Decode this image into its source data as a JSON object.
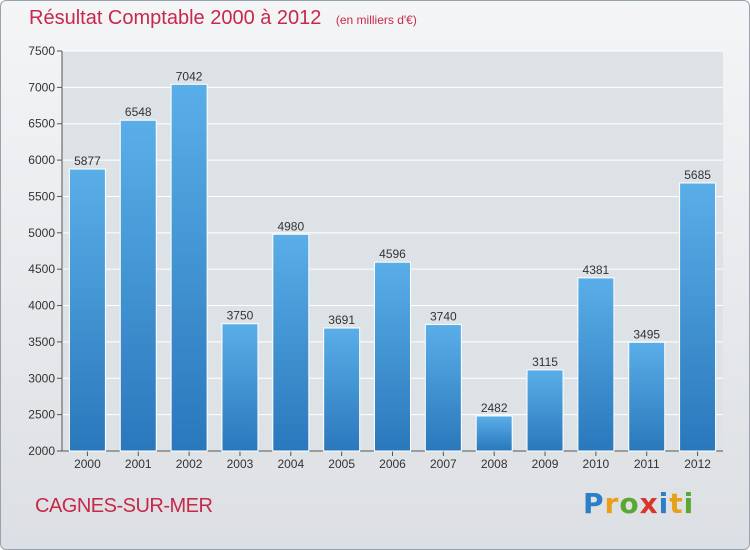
{
  "chart_data": {
    "type": "bar",
    "title": "Résultat Comptable 2000 à 2012",
    "subtitle": "(en milliers d'€)",
    "categories": [
      "2000",
      "2001",
      "2002",
      "2003",
      "2004",
      "2005",
      "2006",
      "2007",
      "2008",
      "2009",
      "2010",
      "2011",
      "2012"
    ],
    "values": [
      5877,
      6548,
      7042,
      3750,
      4980,
      3691,
      4596,
      3740,
      2482,
      3115,
      4381,
      3495,
      5685
    ],
    "ylim": [
      2000,
      7500
    ],
    "yticks": [
      2000,
      2500,
      3000,
      3500,
      4000,
      4500,
      5000,
      5500,
      6000,
      6500,
      7000,
      7500
    ],
    "grid": true,
    "bar_color_top": "#5aaee8",
    "bar_color_bottom": "#2a78bc",
    "title_color": "#c8284a"
  },
  "footer": {
    "city": "CAGNES-SUR-MER",
    "logo_text": "Proxiti"
  }
}
